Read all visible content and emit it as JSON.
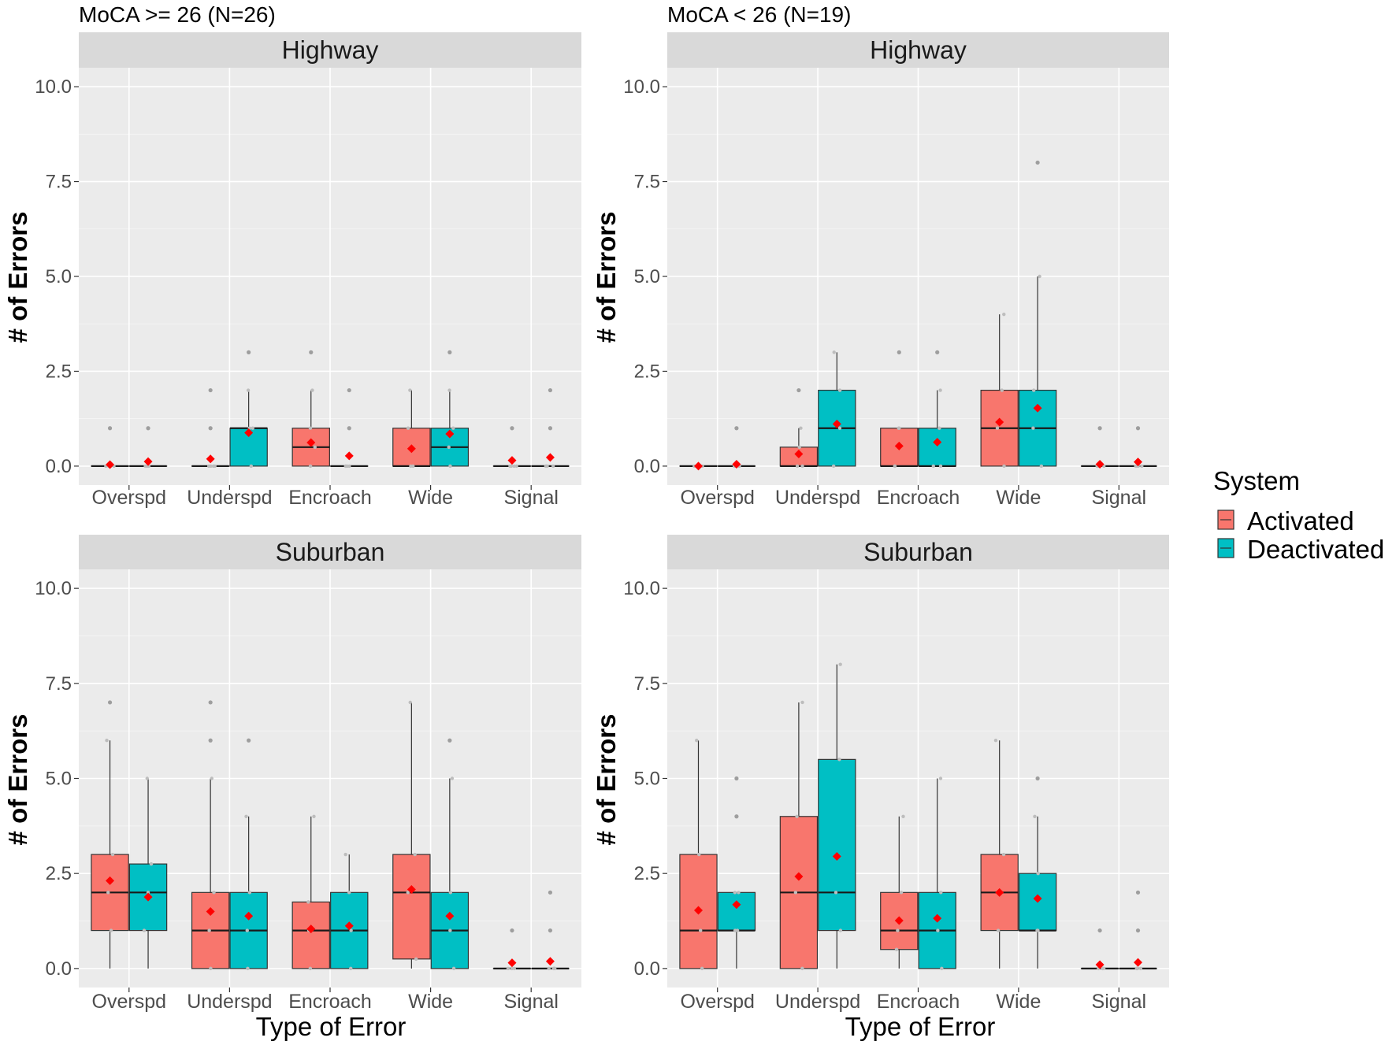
{
  "chart_data": {
    "type": "box",
    "x_title": "Type of Error",
    "y_title": "# of Errors",
    "categories": [
      "Overspd",
      "Underspd",
      "Encroach",
      "Wide",
      "Signal"
    ],
    "y_range": [
      0,
      10
    ],
    "y_ticks": [
      "0.0",
      "2.5",
      "5.0",
      "7.5",
      "10.0"
    ],
    "legend": {
      "title": "System",
      "placement": "right",
      "items": [
        {
          "label": "Activated",
          "color": "#F8766D"
        },
        {
          "label": "Deactivated",
          "color": "#00BFC4"
        }
      ]
    },
    "mean_marker_color": "#FF0000",
    "panels": [
      {
        "group": "MoCA >= 26 (N=26)",
        "facet": "Highway",
        "boxes": {
          "Activated": [
            {
              "q1": 0,
              "median": 0,
              "q3": 0,
              "wlo": 0,
              "whi": 0,
              "mean": 0.04,
              "outliers": [
                1
              ]
            },
            {
              "q1": 0,
              "median": 0,
              "q3": 0,
              "wlo": 0,
              "whi": 0,
              "mean": 0.19,
              "outliers": [
                1,
                2
              ]
            },
            {
              "q1": 0,
              "median": 0.5,
              "q3": 1,
              "wlo": 0,
              "whi": 2,
              "mean": 0.62,
              "outliers": [
                3
              ]
            },
            {
              "q1": 0,
              "median": 0,
              "q3": 1,
              "wlo": 0,
              "whi": 2,
              "mean": 0.46,
              "outliers": []
            },
            {
              "q1": 0,
              "median": 0,
              "q3": 0,
              "wlo": 0,
              "whi": 0,
              "mean": 0.15,
              "outliers": [
                1
              ]
            }
          ],
          "Deactivated": [
            {
              "q1": 0,
              "median": 0,
              "q3": 0,
              "wlo": 0,
              "whi": 0,
              "mean": 0.12,
              "outliers": [
                1
              ]
            },
            {
              "q1": 0,
              "median": 1,
              "q3": 1,
              "wlo": 0,
              "whi": 2,
              "mean": 0.88,
              "outliers": [
                3
              ]
            },
            {
              "q1": 0,
              "median": 0,
              "q3": 0,
              "wlo": 0,
              "whi": 0,
              "mean": 0.27,
              "outliers": [
                1,
                2
              ]
            },
            {
              "q1": 0,
              "median": 0.5,
              "q3": 1,
              "wlo": 0,
              "whi": 2,
              "mean": 0.85,
              "outliers": [
                3
              ]
            },
            {
              "q1": 0,
              "median": 0,
              "q3": 0,
              "wlo": 0,
              "whi": 0,
              "mean": 0.23,
              "outliers": [
                1,
                2
              ]
            }
          ]
        }
      },
      {
        "group": "MoCA < 26 (N=19)",
        "facet": "Highway",
        "boxes": {
          "Activated": [
            {
              "q1": 0,
              "median": 0,
              "q3": 0,
              "wlo": 0,
              "whi": 0,
              "mean": 0,
              "outliers": []
            },
            {
              "q1": 0,
              "median": 0,
              "q3": 0.5,
              "wlo": 0,
              "whi": 1,
              "mean": 0.32,
              "outliers": [
                2
              ]
            },
            {
              "q1": 0,
              "median": 0,
              "q3": 1,
              "wlo": 0,
              "whi": 1,
              "mean": 0.53,
              "outliers": [
                3
              ]
            },
            {
              "q1": 0,
              "median": 1,
              "q3": 2,
              "wlo": 0,
              "whi": 4,
              "mean": 1.16,
              "outliers": []
            },
            {
              "q1": 0,
              "median": 0,
              "q3": 0,
              "wlo": 0,
              "whi": 0,
              "mean": 0.05,
              "outliers": [
                1
              ]
            }
          ],
          "Deactivated": [
            {
              "q1": 0,
              "median": 0,
              "q3": 0,
              "wlo": 0,
              "whi": 0,
              "mean": 0.05,
              "outliers": [
                1
              ]
            },
            {
              "q1": 0,
              "median": 1,
              "q3": 2,
              "wlo": 0,
              "whi": 3,
              "mean": 1.11,
              "outliers": []
            },
            {
              "q1": 0,
              "median": 0,
              "q3": 1,
              "wlo": 0,
              "whi": 2,
              "mean": 0.63,
              "outliers": [
                3
              ]
            },
            {
              "q1": 0,
              "median": 1,
              "q3": 2,
              "wlo": 0,
              "whi": 5,
              "mean": 1.53,
              "outliers": [
                8
              ]
            },
            {
              "q1": 0,
              "median": 0,
              "q3": 0,
              "wlo": 0,
              "whi": 0,
              "mean": 0.11,
              "outliers": [
                1
              ]
            }
          ]
        }
      },
      {
        "group": "MoCA >= 26 (N=26)",
        "facet": "Suburban",
        "boxes": {
          "Activated": [
            {
              "q1": 1,
              "median": 2,
              "q3": 3,
              "wlo": 0,
              "whi": 6,
              "mean": 2.31,
              "outliers": [
                7
              ]
            },
            {
              "q1": 0,
              "median": 1,
              "q3": 2,
              "wlo": 0,
              "whi": 5,
              "mean": 1.5,
              "outliers": [
                6,
                7
              ]
            },
            {
              "q1": 0,
              "median": 1,
              "q3": 1.75,
              "wlo": 0,
              "whi": 4,
              "mean": 1.04,
              "outliers": []
            },
            {
              "q1": 0.25,
              "median": 2,
              "q3": 3,
              "wlo": 0,
              "whi": 7,
              "mean": 2.08,
              "outliers": []
            },
            {
              "q1": 0,
              "median": 0,
              "q3": 0,
              "wlo": 0,
              "whi": 0,
              "mean": 0.15,
              "outliers": [
                1
              ]
            }
          ],
          "Deactivated": [
            {
              "q1": 1,
              "median": 2,
              "q3": 2.75,
              "wlo": 0,
              "whi": 5,
              "mean": 1.88,
              "outliers": []
            },
            {
              "q1": 0,
              "median": 1,
              "q3": 2,
              "wlo": 0,
              "whi": 4,
              "mean": 1.38,
              "outliers": [
                6
              ]
            },
            {
              "q1": 0,
              "median": 1,
              "q3": 2,
              "wlo": 0,
              "whi": 3,
              "mean": 1.12,
              "outliers": []
            },
            {
              "q1": 0,
              "median": 1,
              "q3": 2,
              "wlo": 0,
              "whi": 5,
              "mean": 1.38,
              "outliers": [
                6
              ]
            },
            {
              "q1": 0,
              "median": 0,
              "q3": 0,
              "wlo": 0,
              "whi": 0,
              "mean": 0.19,
              "outliers": [
                1,
                2
              ]
            }
          ]
        }
      },
      {
        "group": "MoCA < 26 (N=19)",
        "facet": "Suburban",
        "boxes": {
          "Activated": [
            {
              "q1": 0,
              "median": 1,
              "q3": 3,
              "wlo": 0,
              "whi": 6,
              "mean": 1.53,
              "outliers": []
            },
            {
              "q1": 0,
              "median": 2,
              "q3": 4,
              "wlo": 0,
              "whi": 7,
              "mean": 2.42,
              "outliers": []
            },
            {
              "q1": 0.5,
              "median": 1,
              "q3": 2,
              "wlo": 0,
              "whi": 4,
              "mean": 1.26,
              "outliers": []
            },
            {
              "q1": 1,
              "median": 2,
              "q3": 3,
              "wlo": 0,
              "whi": 6,
              "mean": 2.0,
              "outliers": []
            },
            {
              "q1": 0,
              "median": 0,
              "q3": 0,
              "wlo": 0,
              "whi": 0,
              "mean": 0.1,
              "outliers": [
                1
              ]
            }
          ],
          "Deactivated": [
            {
              "q1": 1,
              "median": 1,
              "q3": 2,
              "wlo": 0,
              "whi": 2,
              "mean": 1.68,
              "outliers": [
                4,
                5
              ]
            },
            {
              "q1": 1,
              "median": 2,
              "q3": 5.5,
              "wlo": 0,
              "whi": 8,
              "mean": 2.95,
              "outliers": []
            },
            {
              "q1": 0,
              "median": 1,
              "q3": 2,
              "wlo": 0,
              "whi": 5,
              "mean": 1.32,
              "outliers": []
            },
            {
              "q1": 1,
              "median": 1,
              "q3": 2.5,
              "wlo": 0,
              "whi": 4,
              "mean": 1.84,
              "outliers": [
                5
              ]
            },
            {
              "q1": 0,
              "median": 0,
              "q3": 0,
              "wlo": 0,
              "whi": 0,
              "mean": 0.16,
              "outliers": [
                1,
                2
              ]
            }
          ]
        }
      }
    ]
  }
}
